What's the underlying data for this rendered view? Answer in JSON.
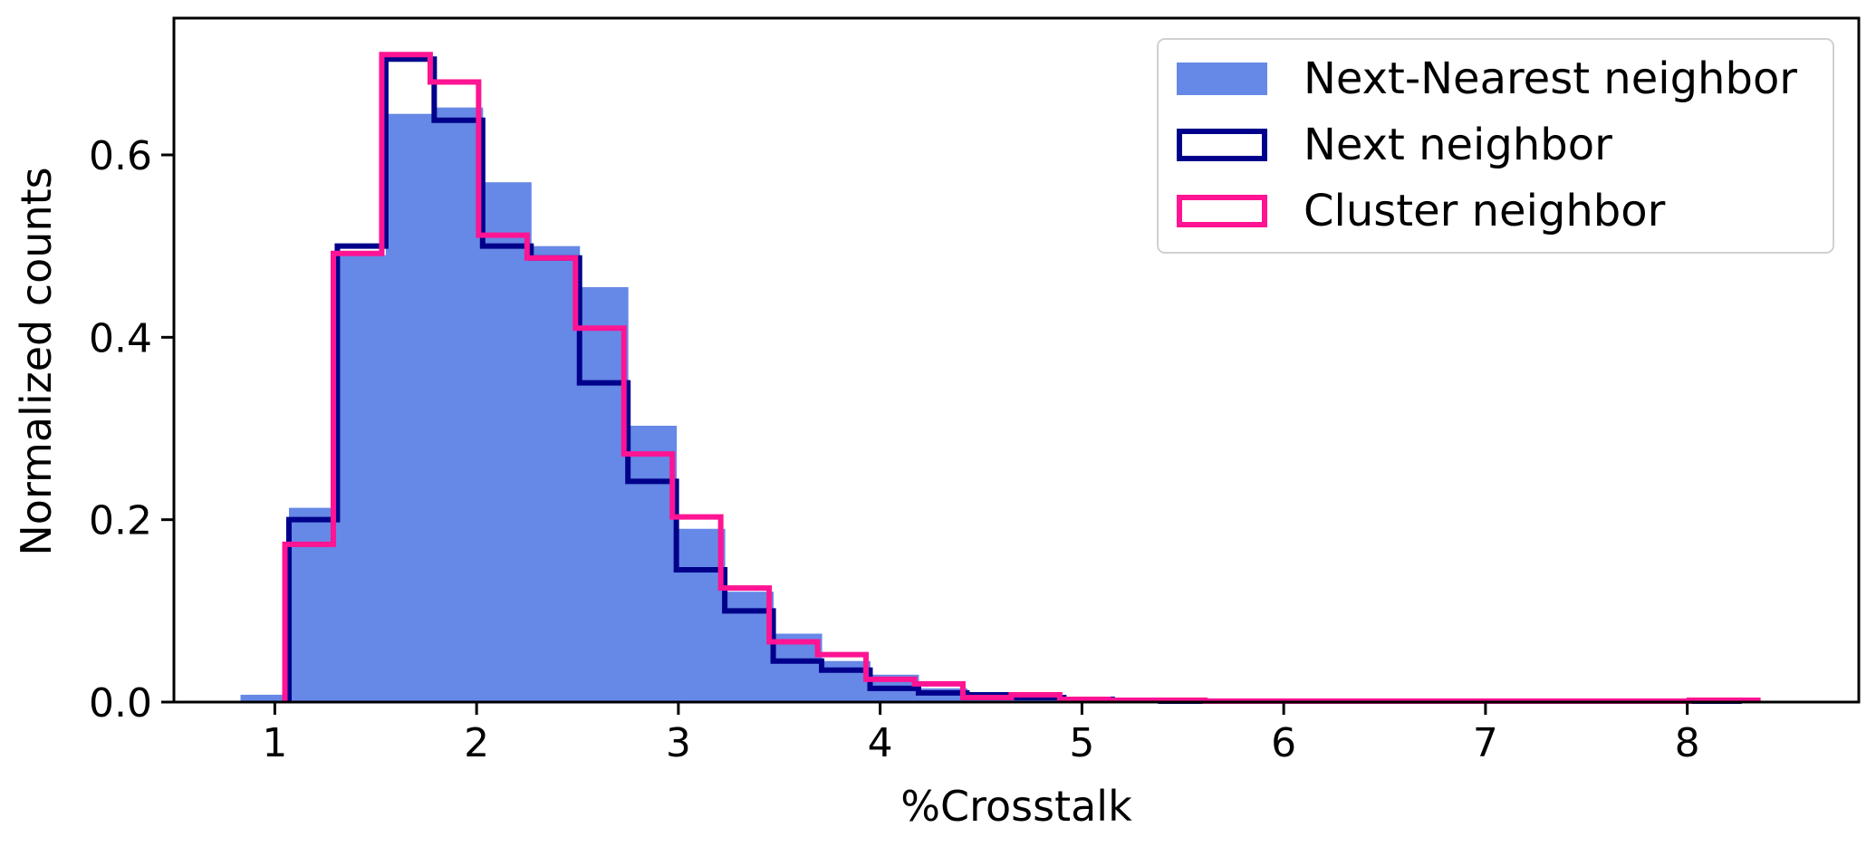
{
  "chart_data": {
    "type": "histogram",
    "title": "",
    "xlabel": "%Crosstalk",
    "ylabel": "Normalized counts",
    "xlim": [
      0.5,
      8.85
    ],
    "ylim": [
      0,
      0.75
    ],
    "xticks": [
      1,
      2,
      3,
      4,
      5,
      6,
      7,
      8
    ],
    "yticks": [
      0.0,
      0.2,
      0.4,
      0.6
    ],
    "ytick_labels": [
      "0.0",
      "0.2",
      "0.4",
      "0.6"
    ],
    "grid": false,
    "legend_position": "top-right",
    "series": [
      {
        "name": "Next-Nearest neighbor",
        "style": "filled",
        "color": "#6688e6",
        "bin_edges": [
          0.83,
          1.07,
          1.31,
          1.55,
          1.79,
          2.03,
          2.27,
          2.51,
          2.75,
          2.99,
          3.23,
          3.47,
          3.71,
          3.95,
          4.19,
          4.43,
          4.67,
          4.91,
          5.15,
          5.39,
          5.63,
          5.87,
          6.11,
          6.35,
          6.59,
          6.83,
          7.07,
          7.31,
          7.55,
          7.79,
          8.03,
          8.27
        ],
        "values": [
          0.008,
          0.213,
          0.49,
          0.645,
          0.652,
          0.57,
          0.5,
          0.455,
          0.303,
          0.19,
          0.121,
          0.075,
          0.045,
          0.03,
          0.015,
          0.01,
          0.006,
          0.004,
          0.003,
          0.002,
          0.001,
          0.002,
          0.001,
          0.001,
          0.001,
          0.001,
          0.001,
          0.001,
          0.001,
          0.001,
          0.001
        ]
      },
      {
        "name": "Next neighbor",
        "style": "step",
        "color": "#00008b",
        "bin_edges": [
          1.07,
          1.31,
          1.55,
          1.79,
          2.03,
          2.27,
          2.51,
          2.75,
          2.99,
          3.23,
          3.47,
          3.71,
          3.95,
          4.19,
          4.43,
          4.67,
          4.91,
          5.15,
          5.39,
          5.63,
          5.87,
          6.11,
          6.35,
          6.59,
          6.83,
          7.07,
          7.31,
          7.55,
          7.79,
          8.03,
          8.27
        ],
        "values": [
          0.2,
          0.5,
          0.705,
          0.638,
          0.5,
          0.487,
          0.35,
          0.242,
          0.145,
          0.1,
          0.045,
          0.035,
          0.015,
          0.01,
          0.008,
          0.005,
          0.003,
          0.002,
          0.001,
          0.001,
          0.001,
          0.001,
          0.001,
          0.001,
          0.001,
          0.001,
          0.001,
          0.001,
          0.001,
          0.001
        ]
      },
      {
        "name": "Cluster neighbor",
        "style": "step",
        "color": "#ff1493",
        "bin_edges": [
          1.05,
          1.29,
          1.53,
          1.77,
          2.01,
          2.25,
          2.49,
          2.73,
          2.97,
          3.21,
          3.45,
          3.69,
          3.93,
          4.17,
          4.41,
          4.65,
          4.89,
          5.13,
          5.37,
          5.61,
          5.85,
          6.09,
          6.33,
          6.57,
          6.81,
          7.05,
          7.29,
          7.53,
          7.77,
          8.01,
          8.25,
          8.35
        ],
        "values": [
          0.173,
          0.492,
          0.71,
          0.68,
          0.512,
          0.487,
          0.41,
          0.272,
          0.203,
          0.125,
          0.066,
          0.052,
          0.025,
          0.02,
          0.005,
          0.008,
          0.003,
          0.002,
          0.002,
          0.001,
          0.001,
          0.001,
          0.001,
          0.001,
          0.001,
          0.001,
          0.001,
          0.001,
          0.001,
          0.002,
          0.002
        ]
      }
    ]
  }
}
